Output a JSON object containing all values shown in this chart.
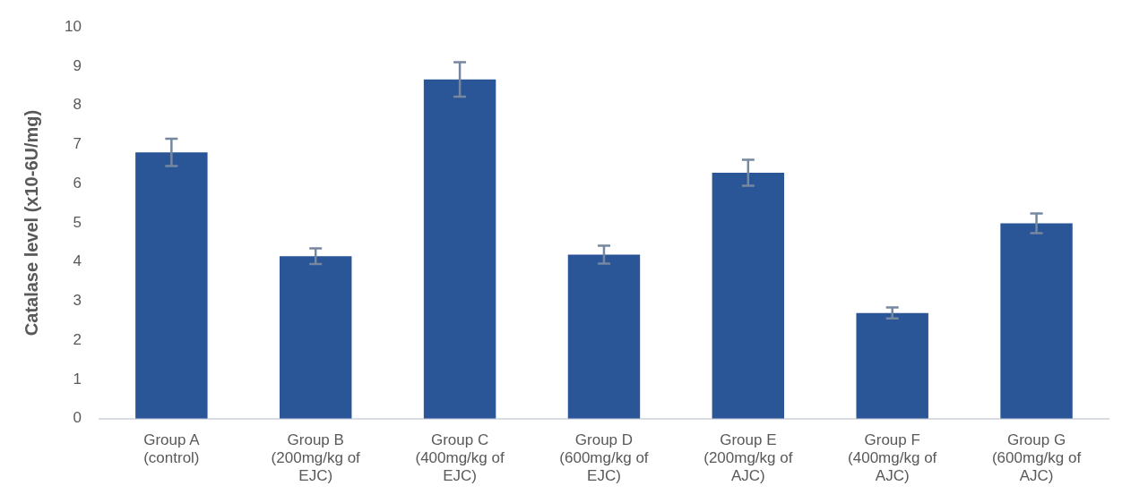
{
  "chart_data": {
    "type": "bar",
    "ylabel": "Catalase level (x10-6U/mg)",
    "categories": [
      "Group A (control)",
      "Group B (200mg/kg of EJC)",
      "Group C (400mg/kg of EJC)",
      "Group D (600mg/kg of EJC)",
      "Group E (200mg/kg of AJC)",
      "Group F (400mg/kg of AJC)",
      "Group G (600mg/kg of AJC)"
    ],
    "values": [
      6.8,
      4.15,
      8.66,
      4.19,
      6.28,
      2.7,
      4.99
    ],
    "errors": [
      0.35,
      0.2,
      0.44,
      0.23,
      0.33,
      0.14,
      0.25
    ],
    "color": "#2a5597",
    "ylim": [
      0,
      10
    ],
    "yticks": [
      0,
      1,
      2,
      3,
      4,
      5,
      6,
      7,
      8,
      9,
      10
    ],
    "grid": false,
    "legend": false
  }
}
